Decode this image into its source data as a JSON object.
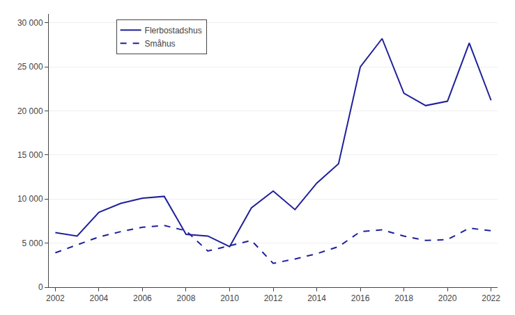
{
  "chart_data": {
    "type": "line",
    "x": [
      2002,
      2003,
      2004,
      2005,
      2006,
      2007,
      2008,
      2009,
      2010,
      2011,
      2012,
      2013,
      2014,
      2015,
      2016,
      2017,
      2018,
      2019,
      2020,
      2021,
      2022
    ],
    "series": [
      {
        "name": "Flerbostadshus",
        "color": "#1F1F9B",
        "line_style": "solid",
        "values": [
          6200,
          5800,
          8500,
          9500,
          10100,
          10300,
          6000,
          5800,
          4600,
          9000,
          10900,
          8800,
          11800,
          14000,
          25000,
          28200,
          22000,
          20600,
          21100,
          27700,
          21200
        ]
      },
      {
        "name": "Småhus",
        "color": "#1F1F9B",
        "line_style": "dashed",
        "values": [
          3900,
          4800,
          5700,
          6300,
          6800,
          7000,
          6400,
          4100,
          4700,
          5300,
          2700,
          3200,
          3800,
          4600,
          6300,
          6500,
          5800,
          5300,
          5400,
          6700,
          6400
        ]
      }
    ],
    "xlim": [
      2001.7,
      2022.3
    ],
    "xticks": [
      2002,
      2004,
      2006,
      2008,
      2010,
      2012,
      2014,
      2016,
      2018,
      2020,
      2022
    ],
    "ylim": [
      0,
      31000
    ],
    "yticks": [
      0,
      {
        "value": 5000,
        "label": "5 000"
      },
      {
        "value": 10000,
        "label": "10 000"
      },
      {
        "value": 15000,
        "label": "15 000"
      },
      {
        "value": 20000,
        "label": "20 000"
      },
      {
        "value": 25000,
        "label": "25 000"
      },
      {
        "value": 30000,
        "label": "30 000"
      }
    ],
    "grid": true,
    "legend": "upper left"
  }
}
